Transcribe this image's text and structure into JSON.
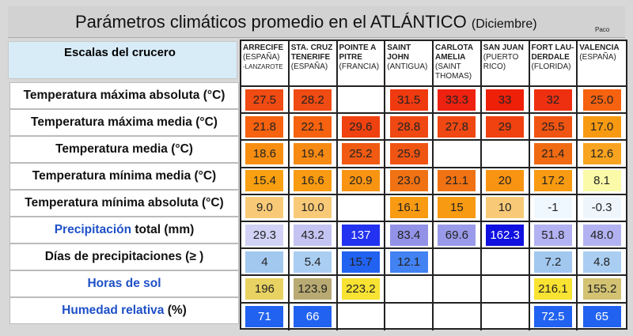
{
  "title": {
    "main": "Parámetros climáticos promedio en el ATLÁNTICO",
    "sub": "(Diciembre)",
    "author": "Paco"
  },
  "left_header": "Escalas del crucero",
  "row_labels": [
    {
      "a": "",
      "b": "Temperatura máxima absoluta (°C)"
    },
    {
      "a": "",
      "b": "Temperatura máxima media (°C)"
    },
    {
      "a": "",
      "b": "Temperatura media (°C)"
    },
    {
      "a": "",
      "b": "Temperatura mínima media (°C)"
    },
    {
      "a": "",
      "b": "Temperatura mínima absoluta (°C)"
    },
    {
      "a": "Precipitación",
      "b": " total (mm)"
    },
    {
      "a": "",
      "b": "Días de precipitaciones (≥ )"
    },
    {
      "a": "Horas de sol",
      "b": ""
    },
    {
      "a": "Humedad relativa",
      "b": " (%)"
    }
  ],
  "columns": [
    {
      "name": "ARRECIFE",
      "sub": "(ESPAÑA)",
      "sub2": "-LANZAROTE"
    },
    {
      "name": "STA. CRUZ TENERIFE",
      "sub": "(ESPAÑA)",
      "sub2": ""
    },
    {
      "name": "POINTE A PITRE",
      "sub": "(FRANCIA)",
      "sub2": ""
    },
    {
      "name": "SAINT JOHN",
      "sub": "(ANTIGUA)",
      "sub2": ""
    },
    {
      "name": "CARLOTA AMELIA",
      "sub": "(SAINT THOMAS)",
      "sub2": ""
    },
    {
      "name": "SAN JUAN",
      "sub": "(PUERTO RICO)",
      "sub2": ""
    },
    {
      "name": "FORT LAU-DERDALE",
      "sub": "(FLORIDA)",
      "sub2": ""
    },
    {
      "name": "VALENCIA",
      "sub": "(ESPAÑA)",
      "sub2": ""
    }
  ],
  "rows": [
    [
      [
        "27.5",
        "#ef4b12"
      ],
      [
        "28.2",
        "#ef4b12"
      ],
      [
        "",
        ""
      ],
      [
        "31.5",
        "#ef3a10"
      ],
      [
        "33.3",
        "#ee2210"
      ],
      [
        "33",
        "#ee2008"
      ],
      [
        "32",
        "#ef3010"
      ],
      [
        "25.0",
        "#f6620f"
      ]
    ],
    [
      [
        "21.8",
        "#f6620f"
      ],
      [
        "22.1",
        "#f6620f"
      ],
      [
        "29.6",
        "#ef4210"
      ],
      [
        "28.8",
        "#ef4812"
      ],
      [
        "27.8",
        "#ef4812"
      ],
      [
        "29",
        "#ef4210"
      ],
      [
        "25.5",
        "#f05412"
      ],
      [
        "17.0",
        "#f79a12"
      ]
    ],
    [
      [
        "18.6",
        "#f78e12"
      ],
      [
        "19.4",
        "#f78a12"
      ],
      [
        "25.2",
        "#f05a12"
      ],
      [
        "25.9",
        "#f05412"
      ],
      [
        "",
        ""
      ],
      [
        "",
        ""
      ],
      [
        "21.4",
        "#f06a12"
      ],
      [
        "12.6",
        "#f8a420"
      ]
    ],
    [
      [
        "15.4",
        "#f8a012"
      ],
      [
        "16.6",
        "#f89a12"
      ],
      [
        "20.9",
        "#f89412"
      ],
      [
        "23.0",
        "#f07212"
      ],
      [
        "21.1",
        "#f07212"
      ],
      [
        "20",
        "#f89412"
      ],
      [
        "17.2",
        "#f89a12"
      ],
      [
        "8.1",
        "#fafaa8"
      ]
    ],
    [
      [
        "9.0",
        "#f8ca78"
      ],
      [
        "10.0",
        "#f8ca78"
      ],
      [
        "",
        ""
      ],
      [
        "16.1",
        "#f89a12"
      ],
      [
        "15",
        "#f89a12"
      ],
      [
        "10",
        "#f8ca78"
      ],
      [
        "-1",
        "#f0f8ff"
      ],
      [
        "-0.3",
        "#eef6fc"
      ]
    ],
    [
      [
        "29.3",
        "#d2d2f6"
      ],
      [
        "43.2",
        "#c4c4f2"
      ],
      [
        "137",
        "#2232f0"
      ],
      [
        "83.4",
        "#9292e8"
      ],
      [
        "69.6",
        "#9a9aea"
      ],
      [
        "162.3",
        "#1010e0"
      ],
      [
        "51.8",
        "#b2b2f2"
      ],
      [
        "48.0",
        "#b2b2f2"
      ]
    ],
    [
      [
        "4",
        "#a2c8f0"
      ],
      [
        "5.4",
        "#aacef2"
      ],
      [
        "15.7",
        "#2262f0"
      ],
      [
        "12.1",
        "#4282f2"
      ],
      [
        "",
        ""
      ],
      [
        "",
        ""
      ],
      [
        "7.2",
        "#a2c8f0"
      ],
      [
        "4.8",
        "#aacef2"
      ]
    ],
    [
      [
        "196",
        "#e8d262"
      ],
      [
        "123.9",
        "#b8aa72"
      ],
      [
        "223.2",
        "#f8e232"
      ],
      [
        "",
        ""
      ],
      [
        "",
        ""
      ],
      [
        "",
        ""
      ],
      [
        "216.1",
        "#f8e232"
      ],
      [
        "155.2",
        "#d2c272"
      ]
    ],
    [
      [
        "71",
        "#2262f0"
      ],
      [
        "66",
        "#2262f0"
      ],
      [
        "",
        ""
      ],
      [
        "",
        ""
      ],
      [
        "",
        ""
      ],
      [
        "",
        ""
      ],
      [
        "72.5",
        "#2262f0"
      ],
      [
        "65",
        "#2262f0"
      ]
    ]
  ],
  "white_text": [
    "137",
    "162.3",
    "71",
    "66",
    "72.5",
    "65"
  ]
}
